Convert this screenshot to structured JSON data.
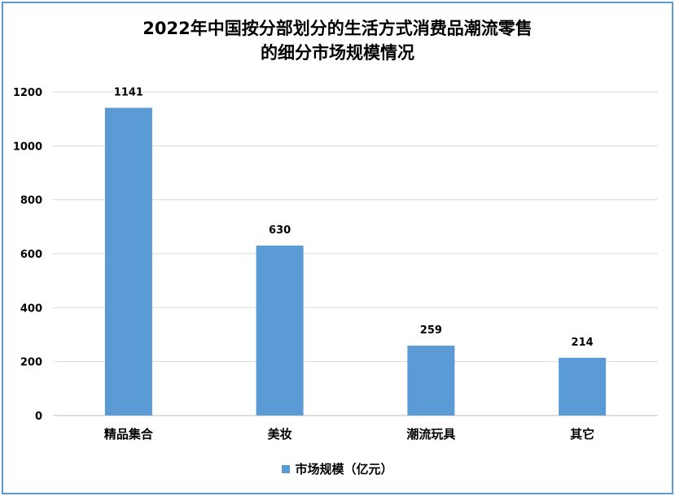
{
  "chart_data": {
    "type": "bar",
    "title_lines": [
      "2022年中国按分部划分的生活方式消费品潮流零售",
      "的细分市场规模情况"
    ],
    "categories": [
      "精品集合",
      "美妆",
      "潮流玩具",
      "其它"
    ],
    "series": [
      {
        "name": "市场规模（亿元）",
        "values": [
          1141,
          630,
          259,
          214
        ],
        "color": "#5b9bd5"
      }
    ],
    "data_labels": [
      "1141",
      "630",
      "259",
      "214"
    ],
    "ylim": [
      0,
      1200
    ],
    "yticks": [
      0,
      200,
      400,
      600,
      800,
      1000,
      1200
    ],
    "grid": true,
    "legend_position": "bottom"
  }
}
